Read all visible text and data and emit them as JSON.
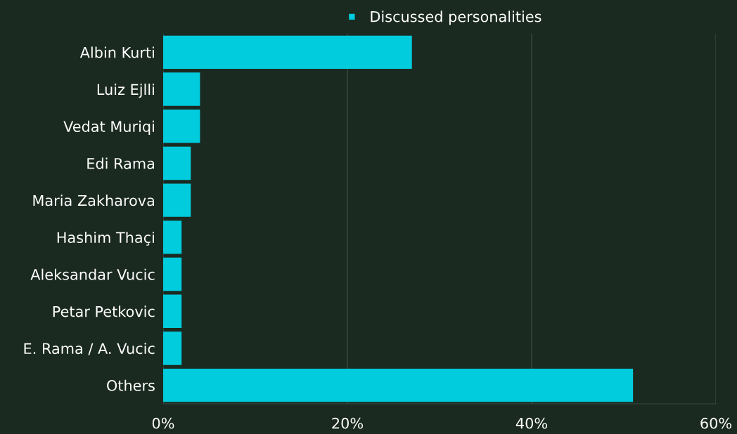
{
  "chart_data": {
    "type": "bar",
    "orientation": "horizontal",
    "categories": [
      "Albin Kurti",
      "Luiz Ejlli",
      "Vedat Muriqi",
      "Edi Rama",
      "Maria Zakharova",
      "Hashim Thaçi",
      "Aleksandar Vucic",
      "Petar Petkovic",
      "E. Rama / A. Vucic",
      "Others"
    ],
    "series": [
      {
        "name": "Discussed personalities",
        "color": "#00ccdd",
        "values": [
          27,
          4,
          4,
          3,
          3,
          2,
          2,
          2,
          2,
          51
        ]
      }
    ],
    "xlim": [
      0,
      60
    ],
    "xticks": [
      {
        "value": 0,
        "label": "0%"
      },
      {
        "value": 20,
        "label": "20%"
      },
      {
        "value": 40,
        "label": "40%"
      },
      {
        "value": 60,
        "label": "60%"
      }
    ],
    "grid": "x",
    "legend": "top"
  }
}
